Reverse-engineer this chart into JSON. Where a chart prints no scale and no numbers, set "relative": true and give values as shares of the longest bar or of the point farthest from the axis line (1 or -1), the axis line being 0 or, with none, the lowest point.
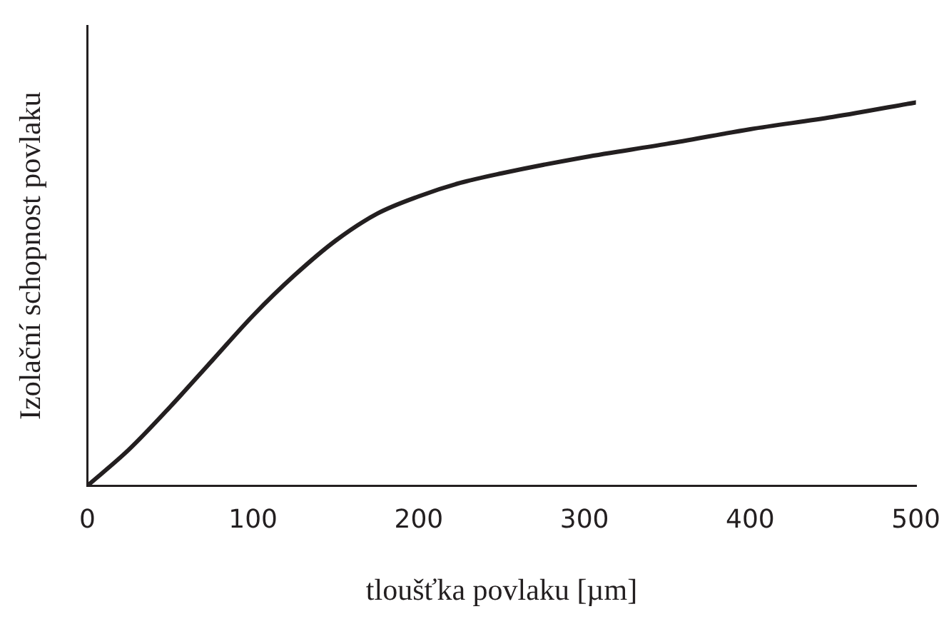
{
  "chart_data": {
    "type": "line",
    "xlabel": "tloušťka povlaku [µm]",
    "ylabel": "Izolační schopnost povlaku",
    "relative": true,
    "x": [
      0,
      25,
      50,
      75,
      100,
      125,
      150,
      175,
      200,
      225,
      250,
      300,
      350,
      400,
      450,
      500
    ],
    "xlim": [
      0,
      500
    ],
    "xticks": [
      0,
      100,
      200,
      300,
      400,
      500
    ],
    "grid": false,
    "legend": false,
    "marker": "none",
    "line_style": "solid",
    "series": [
      {
        "color": "#231f20",
        "values": [
          0,
          0.094,
          0.206,
          0.325,
          0.444,
          0.549,
          0.64,
          0.71,
          0.755,
          0.79,
          0.815,
          0.857,
          0.892,
          0.93,
          0.962,
          1
        ]
      }
    ]
  }
}
